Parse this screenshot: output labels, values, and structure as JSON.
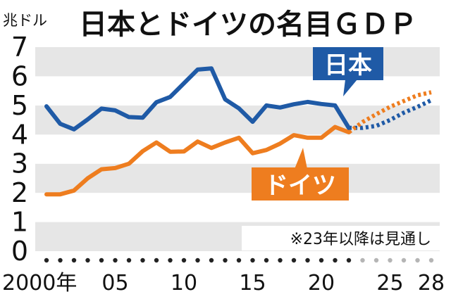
{
  "chart_data": {
    "type": "line",
    "title": "日本とドイツの名目ＧＤＰ",
    "unit_label": "兆ドル",
    "note": "※23年以降は見通し",
    "ylim": [
      0,
      7
    ],
    "y_ticks": [
      "0",
      "1",
      "2",
      "3",
      "4",
      "5",
      "6",
      "7"
    ],
    "xlim": [
      2000,
      2028
    ],
    "x_ticks": [
      {
        "value": 2000,
        "label": "2000年"
      },
      {
        "value": 2005,
        "label": "05"
      },
      {
        "value": 2010,
        "label": "10"
      },
      {
        "value": 2015,
        "label": "15"
      },
      {
        "value": 2020,
        "label": "20"
      },
      {
        "value": 2025,
        "label": "25"
      },
      {
        "value": 2028,
        "label": "28"
      }
    ],
    "x_dot_years": [
      2000,
      2001,
      2002,
      2003,
      2004,
      2005,
      2006,
      2007,
      2008,
      2009,
      2010,
      2011,
      2012,
      2013,
      2014,
      2015,
      2016,
      2017,
      2018,
      2019,
      2020,
      2021,
      2022,
      2023,
      2024,
      2025,
      2026,
      2027,
      2028
    ],
    "grid": "alternating horizontal bands",
    "series": [
      {
        "name": "日本",
        "color": "#1f5aa6",
        "actual": {
          "x": [
            2000,
            2001,
            2002,
            2003,
            2004,
            2005,
            2006,
            2007,
            2008,
            2009,
            2010,
            2011,
            2012,
            2013,
            2014,
            2015,
            2016,
            2017,
            2018,
            2019,
            2020,
            2021,
            2022
          ],
          "y": [
            4.97,
            4.37,
            4.18,
            4.52,
            4.89,
            4.83,
            4.6,
            4.58,
            5.11,
            5.29,
            5.76,
            6.23,
            6.27,
            5.21,
            4.9,
            4.44,
            5.0,
            4.93,
            5.04,
            5.12,
            5.05,
            5.0,
            4.23
          ]
        },
        "forecast": {
          "x": [
            2022,
            2023,
            2024,
            2025,
            2026,
            2027,
            2028
          ],
          "y": [
            4.23,
            4.23,
            4.3,
            4.5,
            4.75,
            4.95,
            5.18
          ]
        }
      },
      {
        "name": "ドイツ",
        "color": "#ee7d1f",
        "actual": {
          "x": [
            2000,
            2001,
            2002,
            2003,
            2004,
            2005,
            2006,
            2007,
            2008,
            2009,
            2010,
            2011,
            2012,
            2013,
            2014,
            2015,
            2016,
            2017,
            2018,
            2019,
            2020,
            2021,
            2022
          ],
          "y": [
            1.95,
            1.95,
            2.08,
            2.5,
            2.81,
            2.85,
            3.0,
            3.43,
            3.73,
            3.41,
            3.42,
            3.76,
            3.54,
            3.73,
            3.89,
            3.36,
            3.47,
            3.69,
            3.98,
            3.89,
            3.89,
            4.26,
            4.08
          ]
        },
        "forecast": {
          "x": [
            2022,
            2023,
            2024,
            2025,
            2026,
            2027,
            2028
          ],
          "y": [
            4.08,
            4.43,
            4.7,
            4.95,
            5.15,
            5.35,
            5.45
          ]
        }
      }
    ]
  }
}
